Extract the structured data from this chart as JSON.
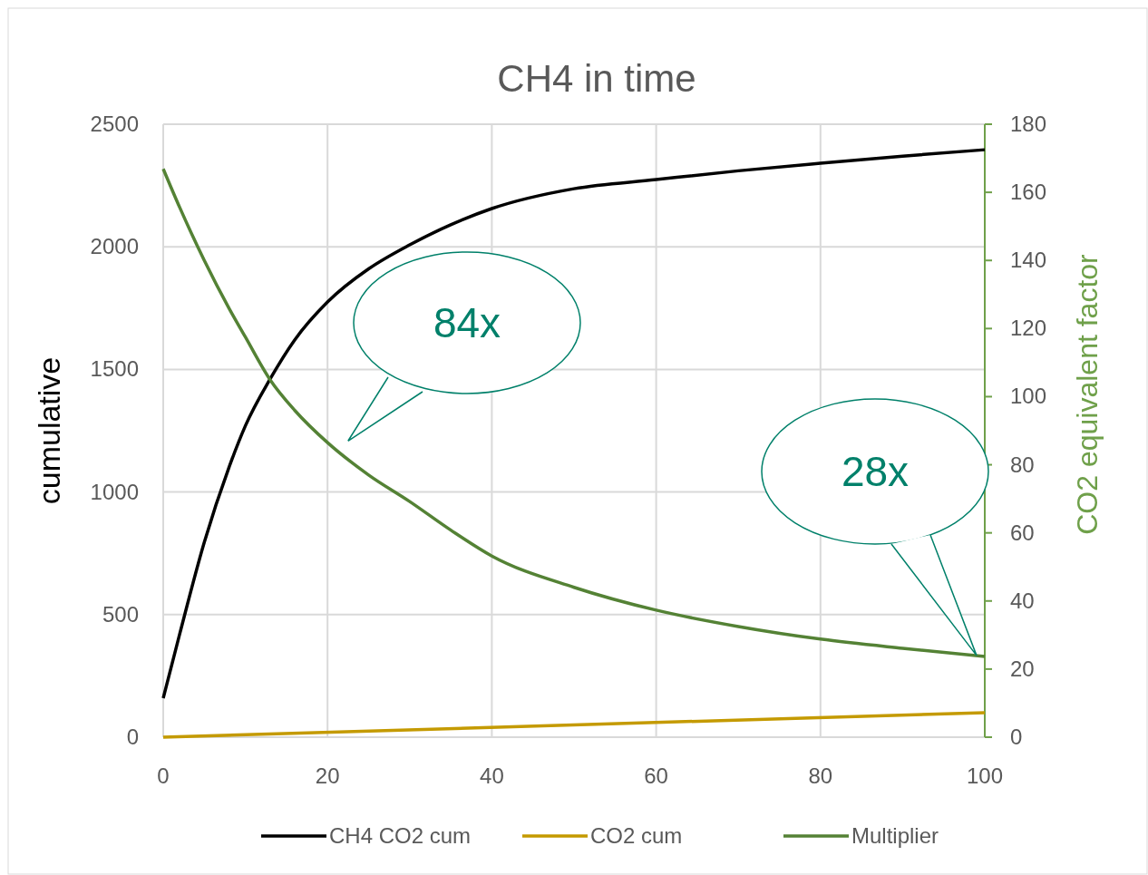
{
  "chart_data": {
    "type": "line",
    "title": "CH4 in time",
    "ylabel": "cumulative",
    "y2label": "CO2 equivalent factor",
    "xlim": [
      0,
      100
    ],
    "xticks": [
      0,
      20,
      40,
      60,
      80,
      100
    ],
    "ylim": [
      0,
      2500
    ],
    "yticks": [
      0,
      500,
      1000,
      1500,
      2000,
      2500
    ],
    "y2lim": [
      0,
      180
    ],
    "y2ticks": [
      0,
      20,
      40,
      60,
      80,
      100,
      120,
      140,
      160,
      180
    ],
    "grid": true,
    "legend": "bottom",
    "line_style": "solid",
    "series": [
      {
        "name": "CH4 CO2 cum",
        "color": "#000000",
        "x": [
          0,
          2,
          5,
          8,
          10,
          13,
          16,
          20,
          25,
          30,
          35,
          40,
          50,
          60,
          70,
          80,
          90,
          100
        ],
        "values": [
          159,
          420,
          795,
          1100,
          1270,
          1460,
          1620,
          1775,
          1910,
          2008,
          2090,
          2156,
          2237,
          2274,
          2310,
          2341,
          2370,
          2396
        ]
      },
      {
        "name": "CO2 cum",
        "color": "#c49a00",
        "x": [
          0,
          100
        ],
        "values": [
          0,
          100
        ]
      },
      {
        "name": "Multiplier",
        "color": "#548235",
        "axis": "y2",
        "x": [
          0,
          2,
          5,
          8,
          10,
          13,
          16,
          20,
          25,
          30,
          35,
          40,
          50,
          60,
          70,
          80,
          90,
          100
        ],
        "values": [
          166.9,
          155.6,
          140,
          126,
          117.5,
          105,
          96,
          86.5,
          77,
          69.2,
          60.8,
          53.2,
          44,
          37.3,
          32.5,
          28.8,
          26.1,
          23.7
        ]
      }
    ],
    "annotations": [
      "84x",
      "28x"
    ]
  }
}
